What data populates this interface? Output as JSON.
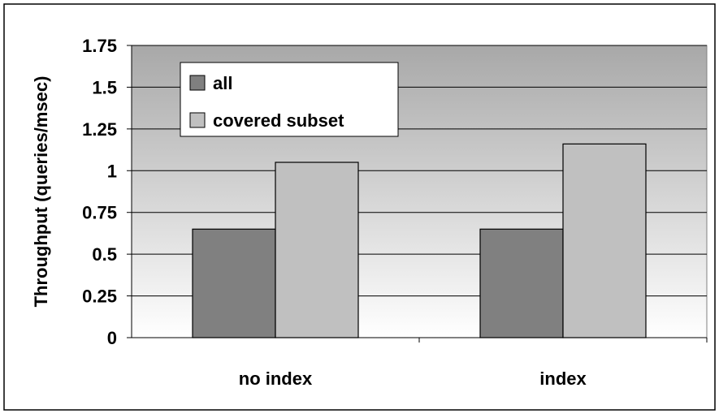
{
  "chart_data": {
    "type": "bar",
    "title": "",
    "xlabel": "",
    "ylabel": "Throughput (queries/msec)",
    "categories": [
      "no index",
      "index"
    ],
    "series": [
      {
        "name": "all",
        "values": [
          0.65,
          0.65
        ],
        "color": "#808080"
      },
      {
        "name": "covered subset",
        "values": [
          1.05,
          1.16
        ],
        "color": "#c0c0c0"
      }
    ],
    "ylim": [
      0,
      1.75
    ],
    "yticks": [
      "0",
      "0.25",
      "0.5",
      "0.75",
      "1",
      "1.25",
      "1.5",
      "1.75"
    ],
    "grid": true,
    "legend_position": "top-left",
    "plot_background": "gradient gray to white (top to bottom)"
  }
}
